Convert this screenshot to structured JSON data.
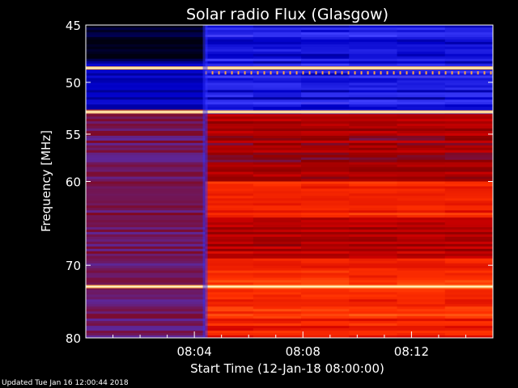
{
  "chart_data": {
    "type": "heatmap",
    "title": "Solar radio Flux (Glasgow)",
    "xlabel": "Start Time (12-Jan-18 08:00:00)",
    "ylabel": "Frequency [MHz]",
    "x_unit": "minutes after 08:00",
    "xlim": [
      0,
      15
    ],
    "ylim": [
      45,
      80
    ],
    "y_scale": "log",
    "x_ticks": [
      {
        "value": 4,
        "label": "08:04"
      },
      {
        "value": 8,
        "label": "08:08"
      },
      {
        "value": 12,
        "label": "08:12"
      }
    ],
    "y_ticks": [
      {
        "value": 45,
        "label": "45"
      },
      {
        "value": 50,
        "label": "50"
      },
      {
        "value": 55,
        "label": "55"
      },
      {
        "value": 60,
        "label": "60"
      },
      {
        "value": 70,
        "label": "70"
      },
      {
        "value": 80,
        "label": "80"
      }
    ],
    "regions": [
      {
        "name": "low-flux period",
        "x": [
          0,
          4.4
        ],
        "level": "low"
      },
      {
        "name": "high-flux period",
        "x": [
          4.4,
          15
        ],
        "level": "high"
      }
    ],
    "bright_bands_mhz": [
      48.7,
      52.8,
      72.8
    ],
    "colormap": [
      "#000010",
      "#0000c8",
      "#4040ff",
      "#8a0000",
      "#d00000",
      "#ff3000",
      "#ff7a20",
      "#ffe080",
      "#ffffff"
    ]
  },
  "footer": "Updated Tue Jan 16 12:00:44 2018"
}
